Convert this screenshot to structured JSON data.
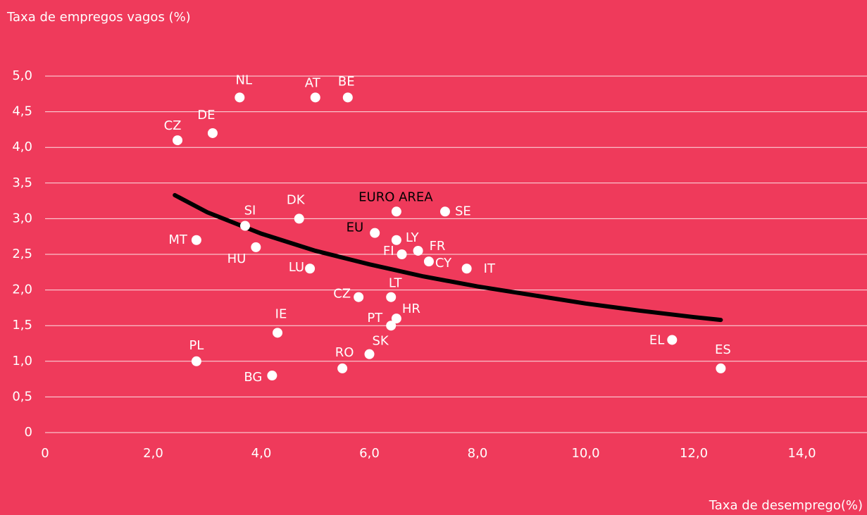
{
  "chart_data": {
    "type": "scatter",
    "y_label": "Taxa de empregos vagos (%)",
    "x_label": "Taxa de desemprego(%)",
    "xlim": [
      0,
      15.1
    ],
    "ylim": [
      0,
      5.3
    ],
    "xticks": [
      0,
      {
        "value": 2,
        "label": "2,0"
      },
      {
        "value": 4,
        "label": "4,0"
      },
      {
        "value": 6,
        "label": "6,0"
      },
      {
        "value": 8,
        "label": "8,0"
      },
      {
        "value": 10,
        "label": "10,0"
      },
      {
        "value": 12,
        "label": "12,0"
      },
      {
        "value": 14,
        "label": "14,0"
      }
    ],
    "yticks": [
      0,
      {
        "value": 0.5,
        "label": "0,5"
      },
      {
        "value": 1,
        "label": "1,0"
      },
      {
        "value": 1.5,
        "label": "1,5"
      },
      {
        "value": 2,
        "label": "2,0"
      },
      {
        "value": 2.5,
        "label": "2,5"
      },
      {
        "value": 3,
        "label": "3,0"
      },
      {
        "value": 3.5,
        "label": "3,5"
      },
      {
        "value": 4,
        "label": "4,0"
      },
      {
        "value": 4.5,
        "label": "4,5"
      },
      {
        "value": 5,
        "label": "5,0"
      }
    ],
    "grid": true,
    "points": {
      "color": "#ffffff",
      "labels": [
        "NL",
        "AT",
        "BE",
        "DE",
        "CZ",
        "SI",
        "DK",
        "EURO AREA",
        "SE",
        "EU",
        "LY",
        "MT",
        "HU",
        "FR",
        "FI",
        "CY",
        "IT",
        "LU",
        "LT",
        "CZ",
        "HR",
        "PT",
        "IE",
        "SK",
        "PL",
        "RO",
        "BG",
        "EL",
        "ES"
      ],
      "label_colors": [
        "#ffffff",
        "#ffffff",
        "#ffffff",
        "#ffffff",
        "#ffffff",
        "#ffffff",
        "#ffffff",
        "#000000",
        "#ffffff",
        "#000000",
        "#ffffff",
        "#ffffff",
        "#ffffff",
        "#ffffff",
        "#ffffff",
        "#ffffff",
        "#ffffff",
        "#ffffff",
        "#ffffff",
        "#ffffff",
        "#ffffff",
        "#ffffff",
        "#ffffff",
        "#ffffff",
        "#ffffff",
        "#ffffff",
        "#ffffff",
        "#ffffff",
        "#ffffff"
      ],
      "x": [
        3.6,
        5.0,
        5.6,
        3.1,
        2.45,
        3.7,
        4.7,
        6.5,
        7.4,
        6.1,
        6.5,
        2.8,
        3.9,
        6.9,
        6.6,
        7.1,
        7.8,
        4.9,
        6.4,
        5.8,
        6.5,
        6.4,
        4.3,
        6.0,
        2.8,
        5.5,
        4.2,
        11.6,
        12.5
      ],
      "values": [
        4.7,
        4.7,
        4.7,
        4.2,
        4.1,
        2.9,
        3.0,
        3.1,
        3.1,
        2.8,
        2.7,
        2.7,
        2.6,
        2.55,
        2.5,
        2.4,
        2.3,
        2.3,
        1.9,
        1.9,
        1.6,
        1.5,
        1.4,
        1.1,
        1.0,
        0.9,
        0.8,
        1.3,
        0.9
      ]
    },
    "trend": {
      "color": "#000000",
      "x": [
        2.4,
        3,
        4,
        5,
        6,
        7,
        8,
        9,
        10,
        11,
        12,
        12.5
      ],
      "values": [
        3.33,
        3.09,
        2.79,
        2.55,
        2.36,
        2.19,
        2.05,
        1.93,
        1.81,
        1.71,
        1.62,
        1.58
      ]
    }
  }
}
